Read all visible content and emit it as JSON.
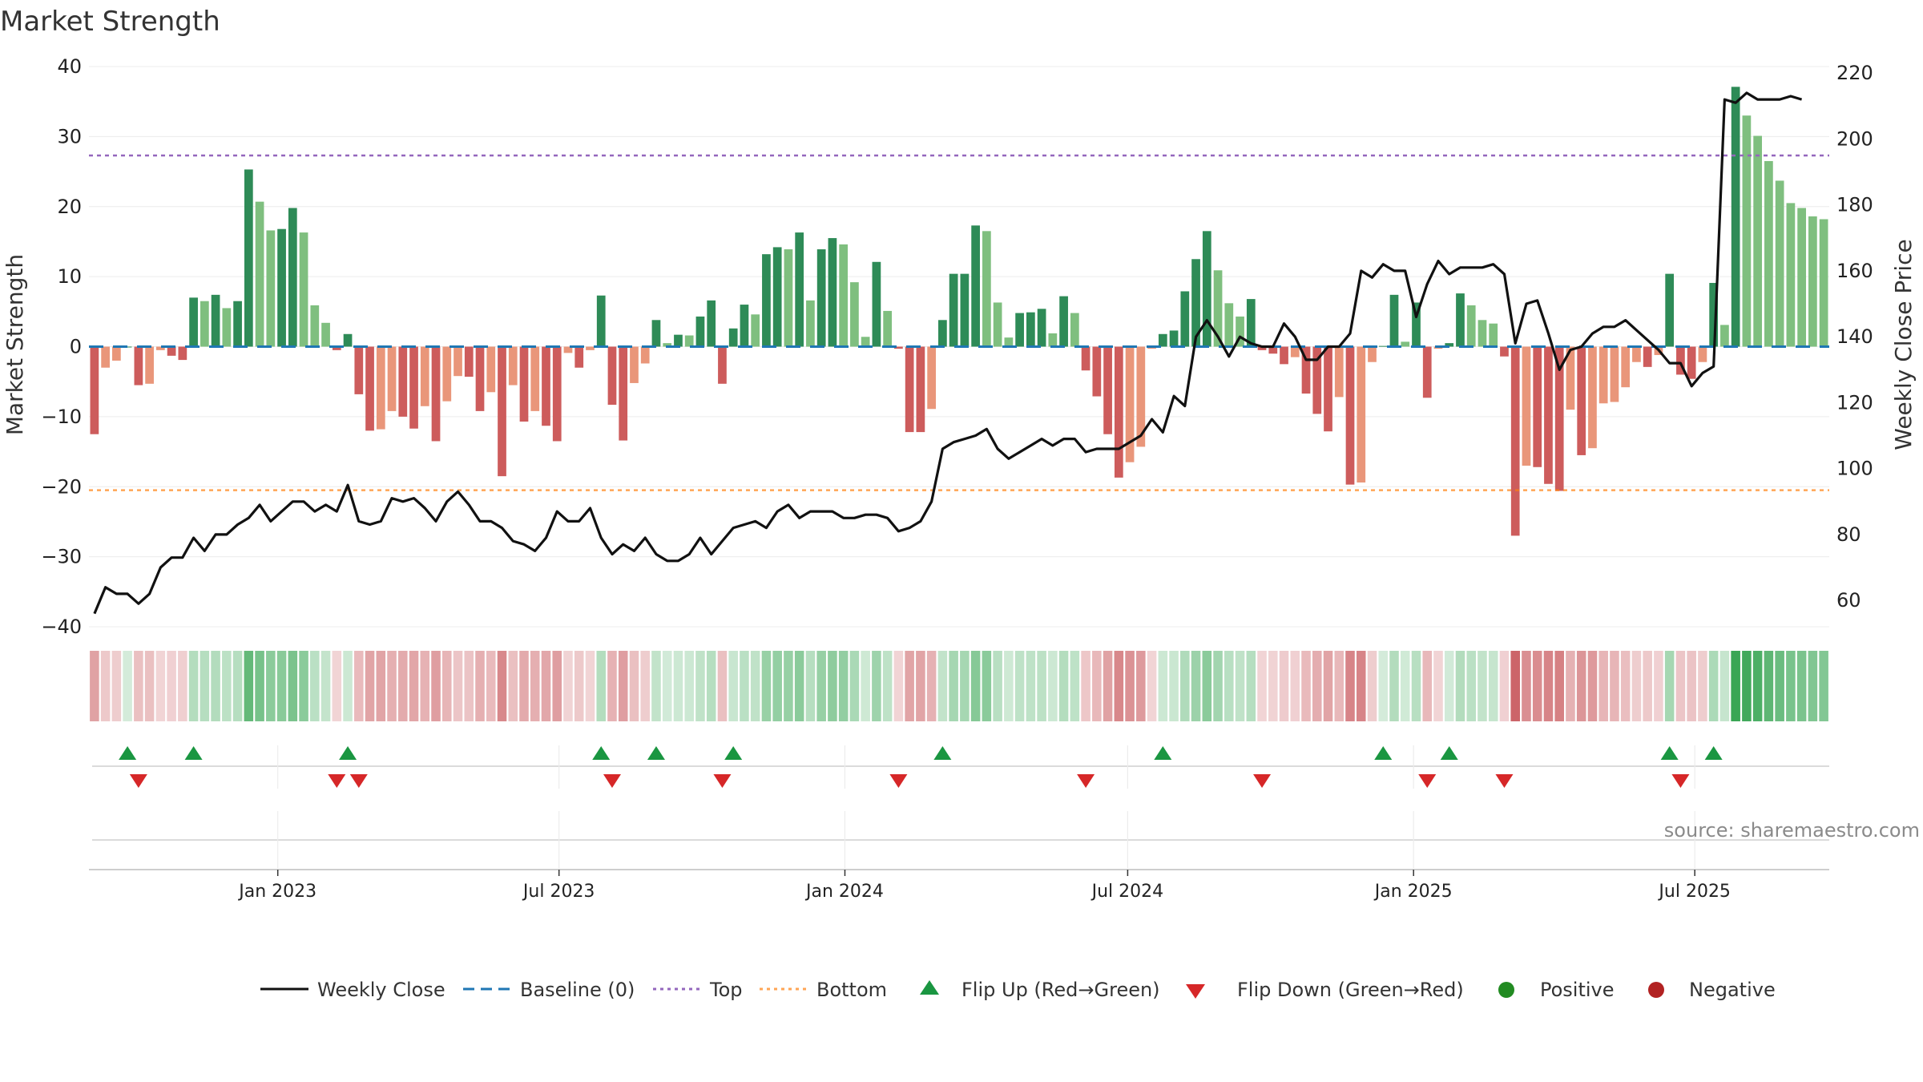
{
  "chart_data": {
    "type": "bar",
    "title": "Market Strength",
    "ylabel": "Market Strength",
    "y2label": "Weekly Close Price",
    "ylim": [
      -40,
      40
    ],
    "y2lim": [
      52,
      222
    ],
    "yticks": [
      40,
      30,
      20,
      10,
      0,
      -10,
      -20,
      -30,
      -40
    ],
    "y2ticks": [
      220,
      200,
      180,
      160,
      140,
      120,
      100,
      80,
      60
    ],
    "start_date": "2022-09-05",
    "end_date": "2025-09-22",
    "x_ticks": [
      {
        "label": "Jan 2023",
        "date": "2023-01-01"
      },
      {
        "label": "Jul 2023",
        "date": "2023-07-01"
      },
      {
        "label": "Jan 2024",
        "date": "2024-01-01"
      },
      {
        "label": "Jul 2024",
        "date": "2024-07-01"
      },
      {
        "label": "Jan 2025",
        "date": "2025-01-01"
      },
      {
        "label": "Jul 2025",
        "date": "2025-07-01"
      }
    ],
    "reference_lines": {
      "baseline": 0,
      "top": 27.3,
      "bottom": -20.5
    },
    "colors": {
      "positive_strong": "#2e8b57",
      "positive_weak": "#7fbf7f",
      "negative_strong": "#cd5c5c",
      "negative_weak": "#e9967a",
      "weekly_close": "#111111",
      "baseline": "#1f77b4",
      "top": "#9467bd",
      "bottom": "#ff7f0e",
      "flip_up": "#1a9641",
      "flip_down": "#d62728",
      "positive_dot": "#228b22",
      "negative_dot": "#b22222"
    },
    "strength": [
      -12.5,
      -3,
      -2,
      0,
      -5.5,
      -5.3,
      -0.5,
      -1.3,
      -1.9,
      7,
      6.5,
      7.4,
      5.5,
      6.5,
      25.3,
      20.7,
      16.6,
      16.8,
      19.8,
      16.3,
      5.9,
      3.4,
      -0.5,
      1.8,
      -6.8,
      -12,
      -11.8,
      -9.2,
      -10,
      -11.7,
      -8.5,
      -13.5,
      -7.8,
      -4.2,
      -4.3,
      -9.2,
      -6.5,
      -18.5,
      -5.5,
      -10.7,
      -9.2,
      -11.3,
      -13.5,
      -0.9,
      -3,
      -0.5,
      7.3,
      -8.3,
      -13.4,
      -5.2,
      -2.4,
      3.8,
      0.5,
      1.7,
      1.6,
      4.3,
      6.6,
      -5.3,
      2.6,
      6,
      4.6,
      13.2,
      14.2,
      13.9,
      16.3,
      6.6,
      13.9,
      15.5,
      14.6,
      9.2,
      1.4,
      12.1,
      5.1,
      -0.3,
      -12.2,
      -12.2,
      -8.9,
      3.8,
      10.4,
      10.4,
      17.3,
      16.5,
      6.3,
      1.3,
      4.8,
      4.9,
      5.4,
      1.9,
      7.2,
      4.8,
      -3.4,
      -7.1,
      -12.5,
      -18.7,
      -16.5,
      -14.3,
      -0.3,
      1.8,
      2.3,
      7.9,
      12.5,
      16.5,
      10.9,
      6.2,
      4.3,
      6.8,
      -0.5,
      -1,
      -2.5,
      -1.5,
      -6.7,
      -9.6,
      -12.1,
      -7.2,
      -19.7,
      -19.4,
      -2.2,
      0.1,
      7.4,
      0.7,
      6.3,
      -7.3,
      -0.3,
      0.5,
      7.6,
      5.9,
      3.8,
      3.3,
      -1.4,
      -27,
      -17,
      -17.2,
      -19.6,
      -20.6,
      -9,
      -15.5,
      -14.5,
      -8.1,
      -7.9,
      -5.8,
      -2.2,
      -2.9,
      -1.2,
      10.4,
      -4,
      -4.6,
      -2.2,
      9.1,
      3.1,
      37.1,
      33,
      30.1,
      26.5,
      23.7,
      20.5,
      19.8,
      18.6,
      18.2
    ],
    "weekly_close": [
      56,
      64,
      62,
      62,
      59,
      62,
      70,
      73,
      73,
      79,
      75,
      80,
      80,
      83,
      85,
      89,
      84,
      87,
      90,
      90,
      87,
      89,
      87,
      95,
      84,
      83,
      84,
      91,
      90,
      91,
      88,
      84,
      90,
      93,
      89,
      84,
      84,
      82,
      78,
      77,
      75,
      79,
      87,
      84,
      84,
      88,
      79,
      74,
      77,
      75,
      79,
      74,
      72,
      72,
      74,
      79,
      74,
      78,
      82,
      83,
      84,
      82,
      87,
      89,
      85,
      87,
      87,
      87,
      85,
      85,
      86,
      86,
      85,
      81,
      82,
      84,
      90,
      106,
      108,
      109,
      110,
      112,
      106,
      103,
      105,
      107,
      109,
      107,
      109,
      109,
      105,
      106,
      106,
      106,
      108,
      110,
      115,
      111,
      122,
      119,
      140,
      145,
      140,
      134,
      140,
      138,
      137,
      137,
      144,
      140,
      133,
      133,
      137,
      137,
      141,
      160,
      158,
      162,
      160,
      160,
      146,
      156,
      163,
      159,
      161,
      161,
      161,
      162,
      159,
      138,
      150,
      151,
      141,
      130,
      136,
      137,
      141,
      143,
      143,
      145,
      142,
      139,
      136,
      132,
      132,
      125,
      129,
      131,
      212,
      211,
      214,
      212,
      212,
      212,
      213,
      212
    ]
  },
  "legend": {
    "weekly_close": "Weekly Close",
    "baseline": "Baseline (0)",
    "top": "Top",
    "bottom": "Bottom",
    "flip_up": "Flip Up (Red→Green)",
    "flip_down": "Flip Down (Green→Red)",
    "positive": "Positive",
    "negative": "Negative"
  },
  "source": "source: sharemaestro.com"
}
